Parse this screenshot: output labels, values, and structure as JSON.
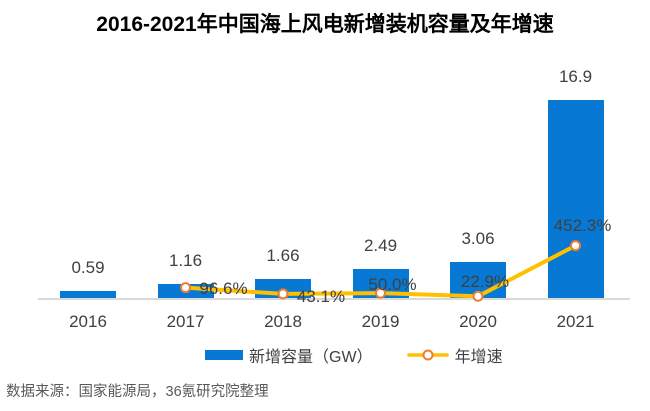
{
  "title": "2016-2021年中国海上风电新增装机容量及年增速",
  "source": "数据来源：国家能源局，36氪研究院整理",
  "legend": {
    "bar": "新增容量（GW）",
    "line": "年增速"
  },
  "colors": {
    "bar": "#0778d4",
    "line": "#ffc000",
    "marker_fill": "#ffffff",
    "marker_border": "#ed7d31",
    "axis": "#d9d9d9",
    "data_label": "#404040",
    "tick_label": "#3f3f3f",
    "source_text": "#595959",
    "title_text": "#000000"
  },
  "chart_data": {
    "type": "bar",
    "combo": "bar+line",
    "title": "2016-2021年中国海上风电新增装机容量及年增速",
    "categories": [
      "2016",
      "2017",
      "2018",
      "2019",
      "2020",
      "2021"
    ],
    "series": [
      {
        "name": "新增容量（GW）",
        "type": "bar",
        "axis": "primary",
        "unit": "GW",
        "values": [
          0.59,
          1.16,
          1.66,
          2.49,
          3.06,
          16.9
        ],
        "labels": [
          "0.59",
          "1.16",
          "1.66",
          "2.49",
          "3.06",
          "16.9"
        ]
      },
      {
        "name": "年增速",
        "type": "line",
        "axis": "secondary",
        "unit": "%",
        "values": [
          null,
          96.6,
          43.1,
          50.0,
          22.9,
          452.3
        ],
        "labels": [
          null,
          "96.6%",
          "43.1%",
          "50.0%",
          "22.9%",
          "452.3%"
        ]
      }
    ],
    "xlabel": "",
    "ylabel": "",
    "value_axis_visible": false,
    "grid": false,
    "legend_position": "bottom",
    "data_labels_visible": true
  }
}
